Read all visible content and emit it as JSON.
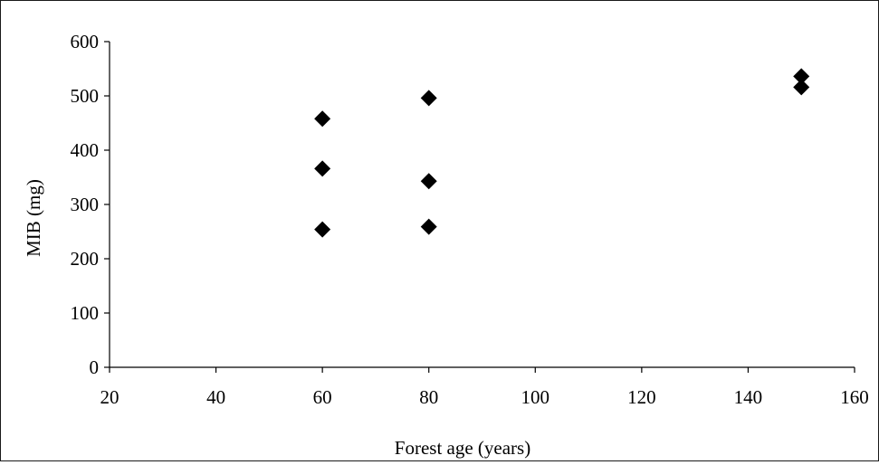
{
  "chart_data": {
    "type": "scatter",
    "title": "",
    "xlabel": "Forest age (years)",
    "ylabel": "MIB (mg)",
    "xlim": [
      20,
      160
    ],
    "ylim": [
      0,
      600
    ],
    "x_ticks": [
      20,
      40,
      60,
      80,
      100,
      120,
      140,
      160
    ],
    "y_ticks": [
      0,
      100,
      200,
      300,
      400,
      500,
      600
    ],
    "grid": false,
    "legend": "none",
    "marker": "diamond",
    "marker_color": "#000000",
    "series": [
      {
        "points": [
          {
            "x": 60,
            "y": 458
          },
          {
            "x": 60,
            "y": 366
          },
          {
            "x": 60,
            "y": 254
          },
          {
            "x": 80,
            "y": 496
          },
          {
            "x": 80,
            "y": 343
          },
          {
            "x": 80,
            "y": 259
          },
          {
            "x": 150,
            "y": 536
          },
          {
            "x": 150,
            "y": 516
          }
        ]
      }
    ]
  }
}
